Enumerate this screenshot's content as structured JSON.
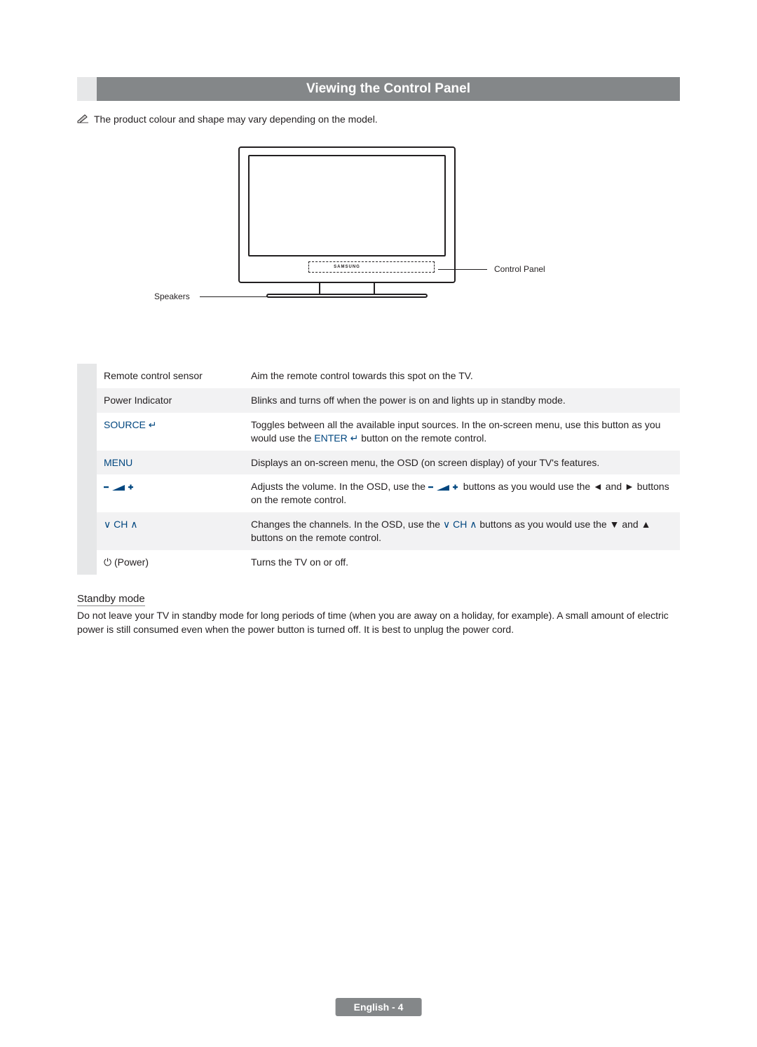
{
  "header": {
    "title": "Viewing the Control Panel"
  },
  "note": {
    "icon": "✎",
    "text": "The product colour and shape may vary depending on the model."
  },
  "diagram": {
    "brand": "SAMSUNG",
    "label_control_panel": "Control Panel",
    "label_speakers": "Speakers"
  },
  "controls": [
    {
      "label": "Remote control sensor",
      "label_plain": true,
      "desc_parts": [
        "Aim the remote control towards this spot on the TV."
      ]
    },
    {
      "label": "Power Indicator",
      "label_plain": true,
      "desc_parts": [
        "Blinks and turns off when the power is on and lights up in standby mode."
      ]
    },
    {
      "label": "SOURCE ↵",
      "desc_parts": [
        "Toggles between all the available input sources. In the on-screen menu, use this button as you would use the ",
        {
          "blue": "ENTER ↵"
        },
        " button on the remote control."
      ]
    },
    {
      "label": "MENU",
      "desc_parts": [
        "Displays an on-screen menu, the OSD (on screen display) of your TV's features."
      ]
    },
    {
      "label_svg": "vol",
      "desc_parts": [
        "Adjusts the volume. In the OSD, use the ",
        {
          "svg": "vol"
        },
        " buttons as you would use the ◄ and ► buttons on the remote control."
      ]
    },
    {
      "label_parts": [
        {
          "glyph": "∨"
        },
        " CH ",
        {
          "glyph": "∧"
        }
      ],
      "desc_parts": [
        "Changes the channels. In the OSD, use the ",
        {
          "blue_parts": [
            {
              "glyph": "∨"
            },
            " CH ",
            {
              "glyph": "∧"
            }
          ]
        },
        " buttons as you would use the ▼ and ▲ buttons on the remote control."
      ]
    },
    {
      "label_parts": [
        {
          "glyph": "⏻"
        },
        " (Power)"
      ],
      "label_plain": true,
      "desc_parts": [
        "Turns the TV on or off."
      ]
    }
  ],
  "standby": {
    "heading": "Standby mode",
    "body": "Do not leave your TV in standby mode for long periods of time (when you are away on a holiday, for example). A small amount of electric power is still consumed even when the power button is turned off. It is best to unplug the power cord."
  },
  "footer": {
    "text": "English - 4"
  },
  "colors": {
    "header_bg": "#848789",
    "label_blue": "#00467f",
    "stripe_bg": "#e6e7e8",
    "row_alt": "#f2f2f3"
  }
}
